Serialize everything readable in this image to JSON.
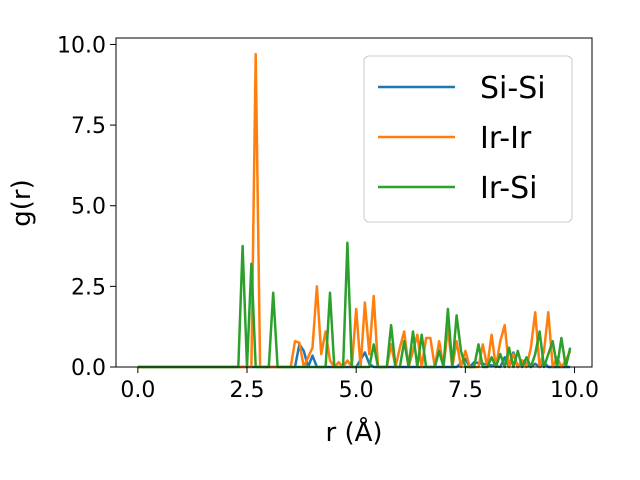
{
  "chart_data": {
    "type": "line",
    "title": "",
    "xlabel": "r (Å)",
    "ylabel": "g(r)",
    "xlim": [
      -0.5,
      10.4
    ],
    "ylim": [
      0,
      10.2
    ],
    "xticks": [
      0.0,
      2.5,
      5.0,
      7.5,
      10.0
    ],
    "xtick_labels": [
      "0.0",
      "2.5",
      "5.0",
      "7.5",
      "10.0"
    ],
    "yticks": [
      0.0,
      2.5,
      5.0,
      7.5,
      10.0
    ],
    "ytick_labels": [
      "0.0",
      "2.5",
      "5.0",
      "7.5",
      "10.0"
    ],
    "grid": false,
    "legend_position": "top-right",
    "series": [
      {
        "name": "Si-Si",
        "color": "#1f77b4",
        "x": [
          0.0,
          3.6,
          3.7,
          3.8,
          3.9,
          4.0,
          4.1,
          4.2,
          5.0,
          5.2,
          5.3,
          5.4,
          5.6,
          6.8,
          7.3,
          7.5,
          7.6,
          7.7,
          8.3,
          8.4,
          8.5,
          8.6,
          8.7,
          8.8,
          9.0,
          9.1,
          9.2,
          9.3,
          9.4,
          9.9
        ],
        "y": [
          0,
          0,
          0.7,
          0.5,
          0,
          0.35,
          0,
          0,
          0,
          0.45,
          0.1,
          0,
          0,
          0,
          0,
          0.25,
          0,
          0.15,
          0,
          0.3,
          0,
          0.45,
          0,
          0.2,
          0,
          0.1,
          0,
          0.15,
          0,
          0
        ]
      },
      {
        "name": "Ir-Ir",
        "color": "#ff7f0e",
        "x": [
          0.0,
          2.6,
          2.7,
          2.8,
          3.5,
          3.6,
          3.7,
          3.8,
          3.9,
          4.0,
          4.1,
          4.2,
          4.3,
          4.4,
          4.5,
          4.6,
          4.7,
          4.8,
          4.9,
          5.0,
          5.1,
          5.2,
          5.3,
          5.4,
          5.5,
          5.6,
          5.7,
          5.8,
          5.9,
          6.0,
          6.1,
          6.2,
          6.3,
          6.4,
          6.5,
          6.6,
          6.7,
          6.8,
          6.9,
          7.0,
          7.1,
          7.2,
          7.3,
          7.4,
          7.5,
          7.6,
          7.7,
          7.8,
          7.9,
          8.0,
          8.1,
          8.2,
          8.3,
          8.4,
          8.5,
          8.6,
          8.7,
          8.8,
          8.9,
          9.0,
          9.1,
          9.2,
          9.3,
          9.4,
          9.5,
          9.6,
          9.7,
          9.8,
          9.9
        ],
        "y": [
          0,
          0,
          9.7,
          0,
          0,
          0.8,
          0.75,
          0,
          0.3,
          0.6,
          2.5,
          0.4,
          1.1,
          0.2,
          0,
          0.15,
          0,
          0.2,
          0,
          1.8,
          0,
          2.0,
          0.4,
          2.2,
          0,
          0,
          0,
          0.7,
          0,
          0.6,
          1.1,
          0,
          0.5,
          1.0,
          0,
          0.9,
          0.9,
          0,
          0.8,
          0,
          1.2,
          0,
          0.8,
          0,
          0.5,
          0,
          0,
          0,
          0.7,
          0,
          1.0,
          0,
          0.8,
          1.3,
          0,
          0.4,
          0,
          0.2,
          0,
          0.6,
          1.7,
          0,
          0.5,
          1.7,
          0,
          0.3,
          0,
          0.2,
          0.5
        ]
      },
      {
        "name": "Ir-Si",
        "color": "#2ca02c",
        "x": [
          0.0,
          2.3,
          2.4,
          2.5,
          2.6,
          2.7,
          2.8,
          3.0,
          3.1,
          3.2,
          4.0,
          4.1,
          4.2,
          4.3,
          4.4,
          4.5,
          4.6,
          4.7,
          4.8,
          4.9,
          5.0,
          5.2,
          5.3,
          5.4,
          5.5,
          5.6,
          5.7,
          5.8,
          5.9,
          6.0,
          6.1,
          6.2,
          6.3,
          6.4,
          6.5,
          6.6,
          6.7,
          6.8,
          6.9,
          7.0,
          7.1,
          7.2,
          7.3,
          7.4,
          7.5,
          7.6,
          7.7,
          7.8,
          7.9,
          8.0,
          8.1,
          8.2,
          8.3,
          8.4,
          8.5,
          8.6,
          8.7,
          8.8,
          8.9,
          9.0,
          9.1,
          9.2,
          9.3,
          9.4,
          9.5,
          9.6,
          9.7,
          9.8,
          9.9
        ],
        "y": [
          0,
          0,
          3.75,
          0,
          3.2,
          0,
          0,
          0,
          2.3,
          0,
          0,
          0,
          0,
          0,
          2.3,
          0,
          0,
          0,
          3.85,
          0,
          0,
          0,
          0,
          0.7,
          0,
          0,
          0,
          1.3,
          0,
          0,
          0.8,
          0,
          1.1,
          0,
          1.0,
          0,
          0,
          0,
          0.5,
          0,
          1.8,
          0,
          1.6,
          0.5,
          0,
          0,
          0,
          0.7,
          0,
          0,
          0.3,
          0,
          0.4,
          0,
          0.6,
          0,
          0.5,
          0,
          0.3,
          0,
          0.4,
          1.1,
          0,
          0.4,
          0.8,
          0,
          0.9,
          0,
          0.6
        ]
      }
    ]
  }
}
